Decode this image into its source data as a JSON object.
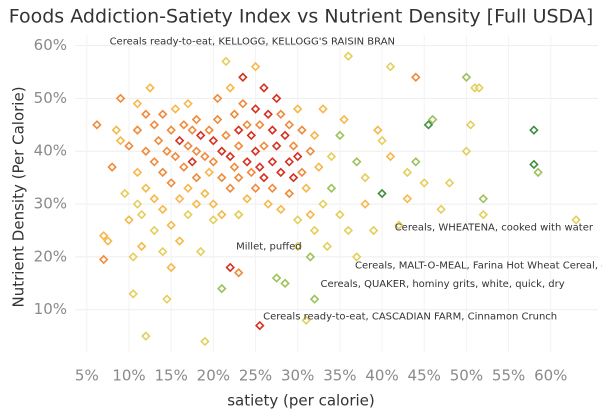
{
  "chart_data": {
    "type": "scatter",
    "title": "Foods Addiction-Satiety Index vs Nutrient Density [Full USDA]",
    "x_label": "satiety (per calorie)",
    "y_label": "Nutrient Density (Per Calorie)",
    "xlim": [
      3.6,
      65.6
    ],
    "ylim": [
      2,
      62
    ],
    "xticks": [
      {
        "value": 5,
        "label": "5%"
      },
      {
        "value": 10,
        "label": "10%"
      },
      {
        "value": 15,
        "label": "15%"
      },
      {
        "value": 20,
        "label": "20%"
      },
      {
        "value": 25,
        "label": "25%"
      },
      {
        "value": 30,
        "label": "30%"
      },
      {
        "value": 35,
        "label": "35%"
      },
      {
        "value": 40,
        "label": "40%"
      },
      {
        "value": 45,
        "label": "45%"
      },
      {
        "value": 50,
        "label": "50%"
      },
      {
        "value": 55,
        "label": "55%"
      },
      {
        "value": 60,
        "label": "60%"
      }
    ],
    "yticks": [
      {
        "value": 10,
        "label": "10%"
      },
      {
        "value": 20,
        "label": "20%"
      },
      {
        "value": 30,
        "label": "30%"
      },
      {
        "value": 40,
        "label": "40%"
      },
      {
        "value": 50,
        "label": "50%"
      },
      {
        "value": 60,
        "label": "60%"
      }
    ],
    "grid": true,
    "series": [
      {
        "color": "#d7301f",
        "x": [
          16,
          17.5,
          18.5,
          20,
          21,
          22,
          22,
          23,
          23.5,
          24,
          24.5,
          25,
          25,
          25.5,
          25.5,
          26,
          26,
          26.5,
          27,
          27,
          27.5,
          27.5,
          28,
          28.5,
          29,
          29.5,
          30
        ],
        "values": [
          42,
          38,
          43,
          42,
          40,
          39,
          18,
          44,
          54,
          38,
          43,
          48,
          40,
          37,
          7,
          52,
          35,
          47,
          44,
          38,
          50,
          41,
          36,
          43,
          38,
          35,
          39
        ]
      },
      {
        "color": "#f08a3b",
        "x": [
          6.2,
          7,
          8,
          9,
          10,
          11,
          12,
          12,
          13,
          13,
          13.5,
          14,
          14,
          14.5,
          15,
          15,
          15.5,
          16.5,
          16.5,
          17,
          17.5,
          18,
          18,
          18,
          19,
          19.5,
          20,
          20.5,
          20.5,
          21,
          21.5,
          22,
          22.5,
          22.5,
          23,
          23,
          23,
          23.5,
          24,
          24.5,
          25,
          25.5,
          26,
          27,
          28,
          29,
          29,
          29.5,
          30.5,
          30.5,
          31.5,
          44
        ],
        "values": [
          45,
          19.5,
          37,
          50,
          41,
          44,
          47,
          40,
          45,
          38,
          42,
          47,
          36,
          40,
          44,
          34,
          39,
          45,
          37,
          41,
          44,
          46,
          40,
          35,
          39,
          44,
          38,
          50,
          46,
          35,
          43,
          33,
          47,
          37,
          41,
          35,
          17,
          49,
          45,
          36,
          33,
          45,
          41,
          33,
          47,
          32,
          45,
          41,
          44,
          36,
          40,
          54
        ]
      },
      {
        "color": "#f6b84a",
        "x": [
          7,
          7.5,
          8.5,
          9,
          10,
          11,
          11,
          11.5,
          12,
          12.5,
          13,
          14,
          15,
          15,
          15.5,
          16,
          16,
          17,
          17,
          18,
          19,
          19.5,
          20,
          21,
          22,
          23,
          24,
          25,
          26.5,
          28,
          30,
          31,
          31.5,
          32,
          32.5,
          33,
          35.5,
          38,
          39.5,
          41,
          43
        ],
        "values": [
          24,
          23,
          44,
          42,
          27,
          49,
          36,
          22,
          33,
          52,
          31,
          29,
          26,
          18,
          48,
          31,
          23,
          49,
          33,
          30,
          32,
          36,
          30,
          28,
          52,
          28,
          31,
          56,
          30,
          29,
          48,
          33,
          28,
          43,
          37,
          48,
          46,
          30,
          44,
          39,
          31
        ]
      },
      {
        "color": "#e3cf5c",
        "x": [
          9.5,
          10.5,
          10.5,
          11,
          11.5,
          12,
          13,
          14,
          14.5,
          17,
          18.5,
          19,
          20,
          21.5,
          23,
          30,
          30,
          31,
          32,
          33,
          33.5,
          34,
          35,
          36,
          36,
          37,
          38,
          39,
          40,
          41,
          42,
          43,
          45,
          47,
          48,
          50,
          50.5,
          51,
          51.5,
          52,
          63
        ],
        "values": [
          32,
          20,
          13,
          30,
          28,
          5,
          25,
          21,
          12,
          28,
          21,
          4,
          27,
          57,
          28,
          27,
          22,
          8,
          25,
          30,
          22,
          39,
          28,
          58,
          25,
          20,
          35,
          25,
          42,
          56,
          26,
          36,
          34,
          29,
          34,
          40,
          45,
          52,
          52,
          28,
          27
        ]
      },
      {
        "color": "#9cc25a",
        "x": [
          21,
          27.5,
          28.5,
          31.5,
          32,
          34,
          35,
          37,
          44,
          46,
          50,
          52,
          58.5
        ],
        "values": [
          14,
          16,
          15,
          20,
          12,
          33,
          43,
          38,
          38,
          46,
          54,
          31,
          36
        ]
      },
      {
        "color": "#3f8f3f",
        "x": [
          40,
          45.5,
          58,
          58
        ],
        "values": [
          32,
          45,
          44,
          37.5
        ]
      }
    ],
    "annotations": [
      {
        "text": "Cereals ready-to-eat, KELLOGG, KELLOGG'S RAISIN BRAN",
        "x": 7.7,
        "y": 60.8
      },
      {
        "text": "Cereals, WHEATENA, cooked with water",
        "x": 41.5,
        "y": 25.6
      },
      {
        "text": "Millet, puffed",
        "x": 22.7,
        "y": 22.0
      },
      {
        "text": "Cereals, MALT-O-MEAL, Farina Hot Wheat Cereal, dry",
        "x": 36.8,
        "y": 18.4
      },
      {
        "text": "Cereals, QUAKER, hominy grits, white, quick, dry",
        "x": 32.7,
        "y": 14.9
      },
      {
        "text": "Cereals ready-to-eat, CASCADIAN FARM, Cinnamon Crunch",
        "x": 25.9,
        "y": 8.7
      }
    ]
  }
}
